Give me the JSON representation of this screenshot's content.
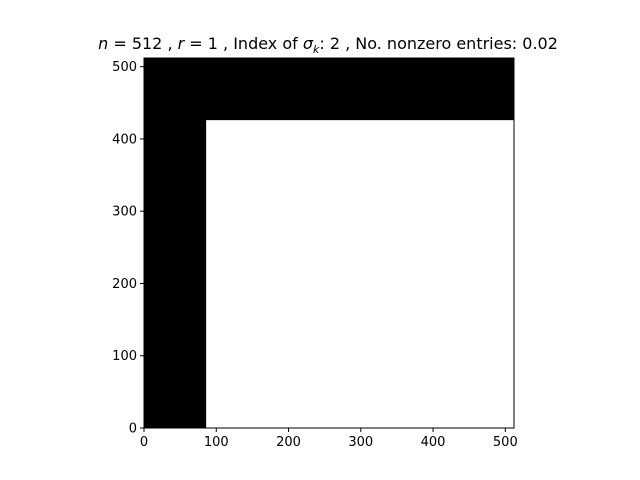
{
  "chart_data": {
    "type": "heatmap",
    "title_parts": {
      "n_var": "n",
      "n_eq": " = 512 , ",
      "r_var": "r",
      "r_eq": " = 1 , Index of ",
      "sigma": "σ",
      "sub_k": "k",
      "rest": ": 2 , No. nonzero entries: 0.02"
    },
    "x": {
      "min": 0,
      "max": 512,
      "ticks": [
        0,
        100,
        200,
        300,
        400,
        500
      ]
    },
    "y": {
      "min": 0,
      "max": 512,
      "ticks": [
        0,
        100,
        200,
        300,
        400,
        500
      ]
    },
    "grid": false,
    "colormap": {
      "nonzero": "#000000",
      "zero": "#ffffff"
    },
    "nonzero_regions": [
      {
        "x": [
          0,
          86
        ],
        "y": [
          0,
          512
        ]
      },
      {
        "x": [
          0,
          512
        ],
        "y": [
          426,
          512
        ]
      }
    ]
  }
}
